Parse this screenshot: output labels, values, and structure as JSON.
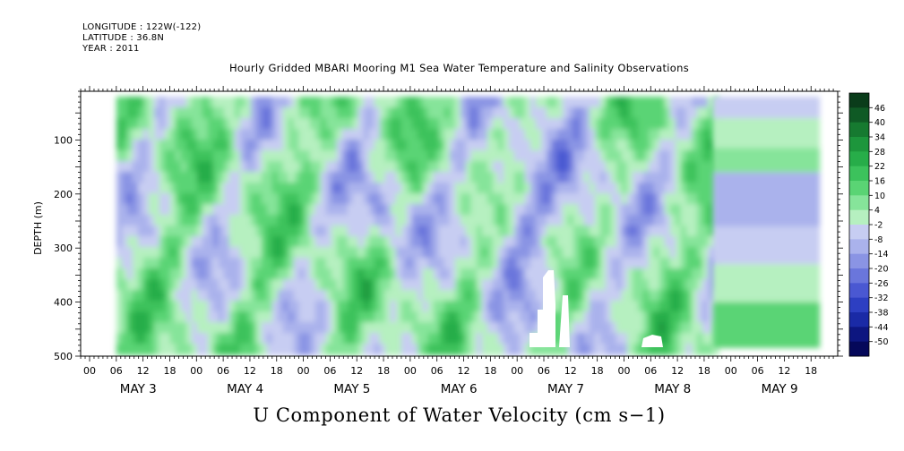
{
  "header": {
    "longitude": "LONGITUDE : 122W(-122)",
    "latitude": "LATITUDE : 36.8N",
    "year": "YEAR : 2011"
  },
  "chart_data": {
    "type": "heatmap",
    "title": "Hourly Gridded MBARI Mooring M1 Sea Water Temperature and Salinity Observations",
    "xlabel": "U Component of Water Velocity (cm s−1)",
    "ylabel": "DEPTH (m)",
    "y_range": [
      500,
      10
    ],
    "y_ticks": [
      100,
      200,
      300,
      400,
      500
    ],
    "x_hour_ticks": [
      "00",
      "06",
      "12",
      "18",
      "00",
      "06",
      "12",
      "18",
      "00",
      "06",
      "12",
      "18",
      "00",
      "06",
      "12",
      "18",
      "00",
      "06",
      "12",
      "18",
      "00",
      "06",
      "12",
      "18",
      "00",
      "06",
      "12",
      "18"
    ],
    "x_day_labels": [
      "MAY 3",
      "MAY 4",
      "MAY 5",
      "MAY 6",
      "MAY 7",
      "MAY 8",
      "MAY 9"
    ],
    "data_extent": {
      "start": "MAY 3 06:00",
      "end": "MAY 9 ~18:00",
      "depth_top": 20,
      "depth_bottom": 485
    },
    "colorbar": {
      "levels": [
        "46",
        "40",
        "34",
        "28",
        "22",
        "16",
        "10",
        "4",
        "-2",
        "-8",
        "-14",
        "-20",
        "-26",
        "-32",
        "-38",
        "-44",
        "-50"
      ],
      "colors": [
        "#0a3c1a",
        "#0f5a25",
        "#167a30",
        "#1d963c",
        "#27ad49",
        "#3cc25c",
        "#5ad474",
        "#86e49a",
        "#b6f0c0",
        "#c7cdf2",
        "#aab2ec",
        "#8a94e4",
        "#6a76dc",
        "#4a58d2",
        "#2d3fc2",
        "#1a2aa6",
        "#0d1680",
        "#05085a"
      ]
    },
    "colors": {
      "positive": "#5ad474",
      "near_zero": "#aab2ec",
      "negative": "#2d3fc2",
      "missing": "#ffffff"
    }
  }
}
